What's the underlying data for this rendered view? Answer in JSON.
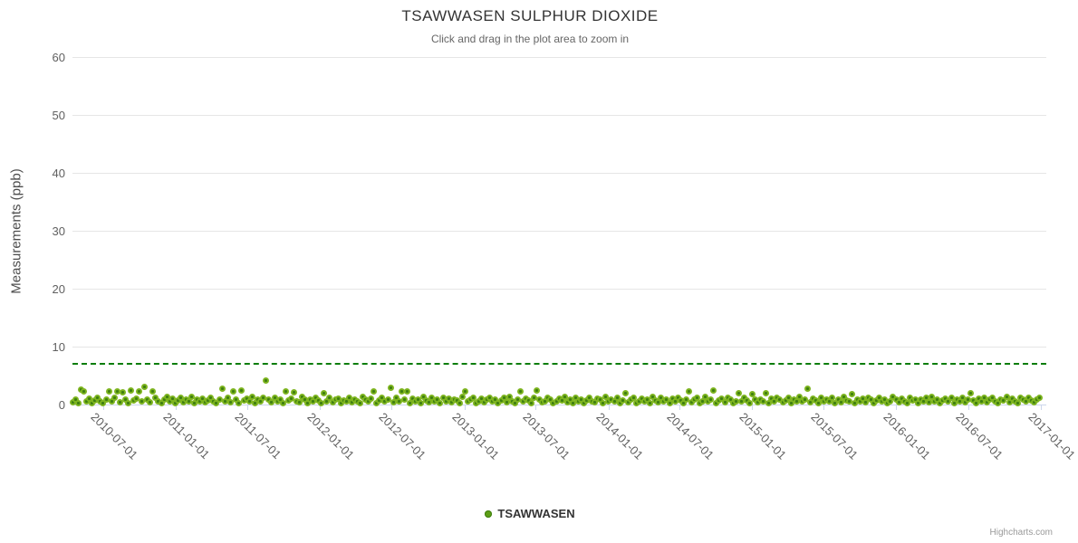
{
  "chart": {
    "title": "TSAWWASEN SULPHUR DIOXIDE",
    "subtitle": "Click and drag in the plot area to zoom in",
    "y_axis_title": "Measurements (ppb)",
    "legend": {
      "label": "TSAWWASEN",
      "marker_color": "#7db41f"
    },
    "credits": "Highcharts.com"
  },
  "chart_data": {
    "type": "scatter",
    "title": "TSAWWASEN SULPHUR DIOXIDE",
    "subtitle": "Click and drag in the plot area to zoom in",
    "xlabel": "",
    "ylabel": "Measurements (ppb)",
    "grid": "horizontal",
    "legend_position": "bottom",
    "yaxis": {
      "min": 0,
      "max": 60,
      "ticks": [
        0,
        10,
        20,
        30,
        40,
        50,
        60
      ]
    },
    "xaxis": {
      "min": "2010-04-14",
      "max": "2017-01-15",
      "tick_labels": [
        "2010-07-01",
        "2011-01-01",
        "2011-07-01",
        "2012-01-01",
        "2012-07-01",
        "2013-01-01",
        "2013-07-01",
        "2014-01-01",
        "2014-07-01",
        "2015-01-01",
        "2015-07-01",
        "2016-01-01",
        "2016-07-01",
        "2017-01-01"
      ]
    },
    "plotline": {
      "value": 7,
      "color": "#0a7d0a",
      "style": "dashed",
      "width": 2
    },
    "series": [
      {
        "name": "TSAWWASEN",
        "color": "#7db41f",
        "marker_center_color": "#3e7f10",
        "x_start": "2010-04-15",
        "x_step_days": 7,
        "values": [
          0.4,
          0.8,
          0.3,
          2.6,
          2.2,
          0.6,
          1.0,
          0.3,
          0.7,
          1.2,
          0.5,
          0.2,
          0.9,
          2.2,
          0.6,
          1.1,
          2.3,
          0.4,
          2.1,
          0.8,
          0.3,
          2.4,
          0.7,
          1.0,
          2.2,
          0.5,
          3.0,
          0.9,
          0.4,
          2.2,
          1.2,
          0.6,
          0.3,
          0.8,
          1.4,
          0.5,
          1.0,
          0.2,
          0.7,
          1.1,
          0.4,
          0.9,
          0.6,
          1.3,
          0.3,
          0.8,
          0.5,
          1.0,
          0.4,
          0.7,
          1.2,
          0.6,
          0.3,
          0.9,
          2.8,
          0.5,
          1.1,
          0.4,
          2.3,
          0.8,
          0.2,
          2.4,
          0.7,
          1.0,
          0.5,
          1.4,
          0.3,
          0.9,
          0.6,
          1.1,
          4.1,
          0.8,
          0.4,
          1.2,
          0.5,
          0.9,
          0.3,
          2.2,
          0.7,
          1.0,
          2.1,
          0.6,
          0.4,
          1.3,
          0.8,
          0.2,
          0.9,
          0.5,
          1.1,
          0.7,
          0.3,
          2.0,
          0.6,
          1.2,
          0.4,
          0.8,
          1.0,
          0.3,
          0.7,
          0.5,
          1.1,
          0.4,
          0.9,
          0.6,
          0.2,
          1.3,
          0.8,
          0.5,
          1.0,
          2.2,
          0.3,
          0.7,
          1.2,
          0.6,
          0.9,
          2.9,
          0.4,
          1.1,
          0.5,
          2.3,
          0.8,
          2.2,
          0.3,
          1.0,
          0.6,
          0.9,
          0.2,
          1.4,
          0.7,
          0.4,
          1.1,
          0.5,
          0.8,
          0.3,
          1.2,
          0.6,
          1.0,
          0.4,
          0.9,
          0.7,
          0.2,
          1.3,
          2.2,
          0.5,
          0.8,
          1.1,
          0.3,
          0.6,
          1.0,
          0.4,
          0.8,
          1.2,
          0.5,
          0.9,
          0.3,
          0.7,
          1.1,
          0.4,
          1.4,
          0.6,
          0.2,
          0.8,
          2.3,
          0.5,
          1.0,
          0.7,
          0.3,
          1.2,
          2.5,
          0.9,
          0.4,
          0.6,
          1.1,
          0.8,
          0.2,
          0.5,
          1.0,
          0.7,
          1.3,
          0.4,
          0.8,
          0.3,
          1.1,
          0.6,
          0.9,
          0.2,
          0.7,
          1.2,
          0.5,
          0.4,
          1.0,
          0.8,
          0.3,
          1.4,
          0.6,
          0.9,
          0.5,
          1.1,
          0.2,
          0.7,
          1.9,
          0.4,
          0.8,
          1.2,
          0.3,
          0.6,
          1.0,
          0.5,
          0.9,
          0.2,
          1.3,
          0.7,
          0.4,
          1.1,
          0.6,
          0.8,
          0.3,
          1.0,
          0.5,
          1.2,
          0.7,
          0.2,
          0.9,
          2.3,
          0.4,
          0.8,
          1.1,
          0.3,
          0.6,
          1.4,
          0.5,
          0.9,
          2.4,
          0.2,
          0.7,
          1.0,
          0.4,
          1.2,
          0.8,
          0.3,
          0.6,
          1.9,
          0.5,
          1.1,
          0.7,
          0.2,
          1.8,
          0.9,
          0.4,
          0.8,
          0.6,
          1.9,
          0.3,
          1.0,
          0.5,
          1.2,
          0.8,
          0.4,
          0.7,
          1.1,
          0.2,
          0.9,
          0.6,
          1.3,
          0.5,
          0.8,
          2.8,
          0.4,
          1.0,
          0.7,
          0.3,
          1.2,
          0.6,
          0.9,
          0.5,
          1.1,
          0.2,
          0.8,
          0.4,
          1.3,
          0.7,
          0.5,
          1.8,
          0.3,
          0.9,
          0.6,
          1.0,
          0.4,
          1.2,
          0.8,
          0.2,
          0.7,
          1.1,
          0.5,
          0.9,
          0.3,
          0.6,
          1.4,
          0.8,
          0.4,
          1.0,
          0.6,
          0.3,
          1.2,
          0.7,
          0.9,
          0.2,
          0.8,
          0.5,
          1.1,
          0.4,
          1.3,
          0.6,
          0.9,
          0.3,
          0.7,
          1.0,
          0.5,
          1.2,
          0.2,
          0.8,
          0.6,
          1.1,
          0.4,
          0.9,
          1.9,
          0.7,
          0.3,
          1.0,
          0.6,
          1.2,
          0.4,
          0.8,
          1.1,
          0.5,
          0.2,
          0.9,
          0.7,
          1.3,
          0.4,
          1.0,
          0.6,
          0.3,
          1.1,
          0.8,
          0.5,
          1.2,
          0.7,
          0.4,
          0.9,
          1.2
        ]
      }
    ]
  }
}
